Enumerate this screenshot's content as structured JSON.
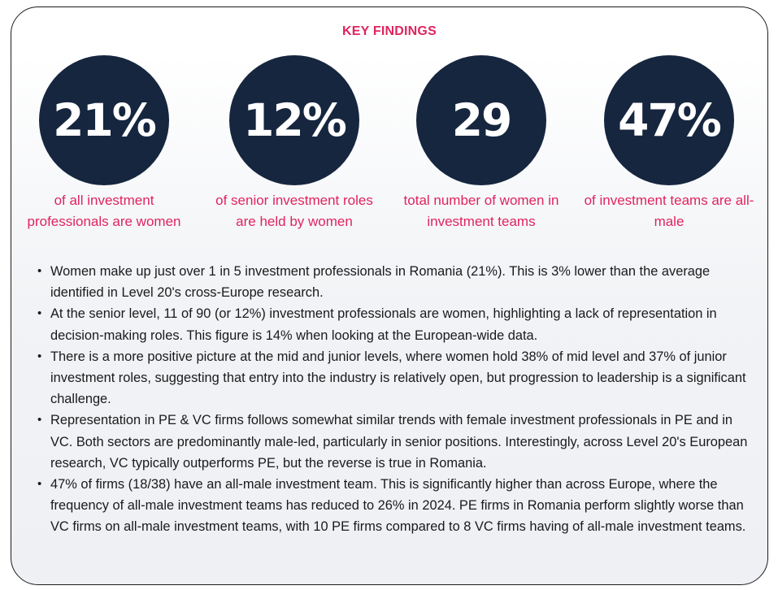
{
  "heading": "KEY FINDINGS",
  "stats": [
    {
      "value": "21%",
      "caption": "of all investment professionals are women"
    },
    {
      "value": "12%",
      "caption": "of senior investment roles are held by women"
    },
    {
      "value": "29",
      "caption": "total number of women in investment teams"
    },
    {
      "value": "47%",
      "caption": "of investment teams are all-male"
    }
  ],
  "bullets": [
    "Women make up just over 1 in 5 investment professionals in Romania (21%). This is 3% lower than the average identified in Level 20's cross-Europe research.",
    "At the senior level, 11 of 90 (or 12%) investment professionals are women, highlighting a lack of representation in decision-making roles. This figure is 14% when looking at the European-wide data.",
    "There is a more positive picture at the mid and junior levels, where women hold 38% of mid level and 37% of junior investment roles, suggesting that entry into the industry is relatively open, but progression to leadership is a significant challenge.",
    "Representation in PE & VC firms follows somewhat similar trends with female investment professionals in PE and in VC. Both sectors are predominantly male-led, particularly in senior positions. Interestingly, across Level 20's European research, VC typically outperforms PE, but the reverse is true in Romania.",
    "47% of firms (18/38) have an all-male investment team. This is significantly higher than across Europe, where the frequency of all-male investment teams has reduced to 26% in 2024. PE firms in Romania perform slightly worse than VC firms on all-male investment teams, with 10 PE firms compared to 8 VC firms having of all-male investment teams."
  ],
  "colors": {
    "accent": "#e0245e",
    "circle": "#16263f",
    "text": "#1a1a1a"
  }
}
